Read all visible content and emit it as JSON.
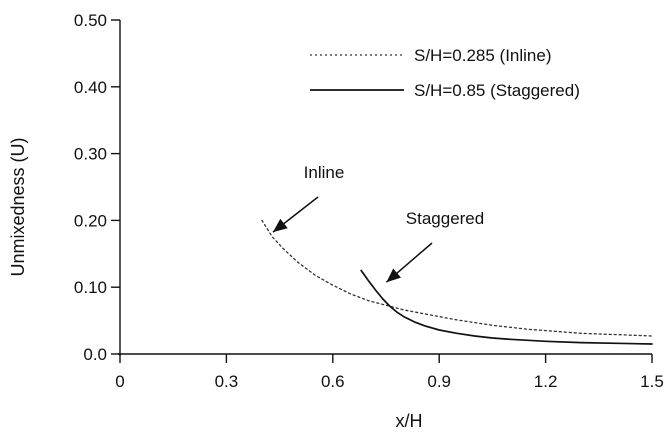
{
  "chart_data": {
    "type": "line",
    "xlabel": "x/H",
    "ylabel": "Unmixedness (U)",
    "xlim": [
      0,
      1.5
    ],
    "ylim": [
      0,
      0.5
    ],
    "xticks": [
      0,
      0.3,
      0.6,
      0.9,
      1.2,
      1.5
    ],
    "xtick_labels": [
      "0",
      "0.3",
      "0.6",
      "0.9",
      "1.2",
      "1.5"
    ],
    "yticks": [
      0,
      0.1,
      0.2,
      0.3,
      0.4,
      0.5
    ],
    "ytick_labels": [
      "0.0",
      "0.10",
      "0.20",
      "0.30",
      "0.40",
      "0.50"
    ],
    "grid": false,
    "legend_position": "top-right",
    "series": [
      {
        "name": "S/H=0.285 (Inline)",
        "style": "dotted",
        "color": "#333333",
        "x": [
          0.4,
          0.43,
          0.46,
          0.5,
          0.55,
          0.6,
          0.65,
          0.7,
          0.75,
          0.8,
          0.85,
          0.9,
          0.95,
          1.0,
          1.05,
          1.1,
          1.15,
          1.2,
          1.25,
          1.3,
          1.35,
          1.4,
          1.45,
          1.5
        ],
        "y": [
          0.2,
          0.175,
          0.158,
          0.138,
          0.118,
          0.103,
          0.09,
          0.08,
          0.073,
          0.066,
          0.061,
          0.056,
          0.051,
          0.047,
          0.043,
          0.04,
          0.037,
          0.035,
          0.033,
          0.031,
          0.03,
          0.029,
          0.028,
          0.027
        ]
      },
      {
        "name": "S/H=0.85 (Staggered)",
        "style": "solid",
        "color": "#111111",
        "x": [
          0.68,
          0.7,
          0.72,
          0.74,
          0.76,
          0.78,
          0.8,
          0.83,
          0.86,
          0.9,
          0.95,
          1.0,
          1.05,
          1.1,
          1.2,
          1.3,
          1.4,
          1.5
        ],
        "y": [
          0.125,
          0.11,
          0.096,
          0.083,
          0.072,
          0.063,
          0.056,
          0.048,
          0.042,
          0.036,
          0.031,
          0.027,
          0.024,
          0.022,
          0.019,
          0.017,
          0.016,
          0.015
        ]
      }
    ],
    "annotations": [
      {
        "text": "Inline",
        "target_x": 0.42,
        "target_y": 0.175
      },
      {
        "text": "Staggered",
        "target_x": 0.74,
        "target_y": 0.1
      }
    ]
  }
}
